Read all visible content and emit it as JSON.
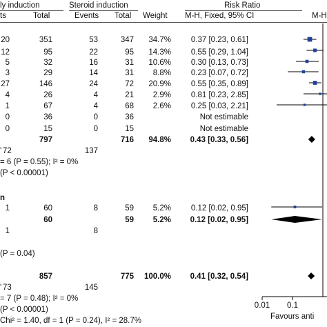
{
  "header": {
    "group1": "ly induction",
    "group2": "Steroid induction",
    "effect": "Risk Ratio",
    "col_events1": "ts",
    "col_total1": "Total",
    "col_events2": "Events",
    "col_total2": "Total",
    "col_weight": "Weight",
    "col_method": "M-H, Fixed, 95% CI",
    "col_method_right": "M-H"
  },
  "rows": [
    {
      "e1": "20",
      "t1": "351",
      "e2": "53",
      "t2": "347",
      "w": "34.7%",
      "ci": "0.37 [0.23, 0.61]"
    },
    {
      "e1": "12",
      "t1": "95",
      "e2": "22",
      "t2": "95",
      "w": "14.3%",
      "ci": "0.55 [0.29, 1.04]"
    },
    {
      "e1": "5",
      "t1": "32",
      "e2": "16",
      "t2": "31",
      "w": "10.6%",
      "ci": "0.30 [0.13, 0.73]"
    },
    {
      "e1": "3",
      "t1": "29",
      "e2": "14",
      "t2": "31",
      "w": "8.8%",
      "ci": "0.23 [0.07, 0.72]"
    },
    {
      "e1": "27",
      "t1": "146",
      "e2": "24",
      "t2": "72",
      "w": "20.9%",
      "ci": "0.55 [0.35, 0.89]"
    },
    {
      "e1": "4",
      "t1": "26",
      "e2": "4",
      "t2": "21",
      "w": "2.9%",
      "ci": "0.81 [0.23, 2.85]"
    },
    {
      "e1": "1",
      "t1": "67",
      "e2": "4",
      "t2": "68",
      "w": "2.6%",
      "ci": "0.25 [0.03, 2.21]"
    },
    {
      "e1": "0",
      "t1": "36",
      "e2": "0",
      "t2": "36",
      "w": "",
      "ci": "Not estimable"
    },
    {
      "e1": "0",
      "t1": "15",
      "e2": "0",
      "t2": "15",
      "w": "",
      "ci": "Not estimable"
    }
  ],
  "subtotal1": {
    "t1": "797",
    "t2": "716",
    "w": "94.8%",
    "ci": "0.43 [0.33, 0.56]"
  },
  "events1": {
    "e1": "72",
    "e2": "137",
    "prefix": "'"
  },
  "het1": "= 6 (P = 0.55); I² = 0%",
  "overall1": "(P < 0.00001)",
  "subgroup2_label": "n",
  "rows2": [
    {
      "e1": "1",
      "t1": "60",
      "e2": "8",
      "t2": "59",
      "w": "5.2%",
      "ci": "0.12 [0.02, 0.95]"
    }
  ],
  "subtotal2": {
    "t1": "60",
    "t2": "59",
    "w": "5.2%",
    "ci": "0.12 [0.02, 0.95]"
  },
  "events2": {
    "e1": "1",
    "e2": "8"
  },
  "overall2": "(P = 0.04)",
  "total": {
    "t1": "857",
    "t2": "775",
    "w": "100.0%",
    "ci": "0.41 [0.32, 0.54]"
  },
  "events_total": {
    "e1": "73",
    "e2": "145",
    "prefix": "'"
  },
  "het_total": "= 7 (P = 0.48); I² = 0%",
  "overall_total": "(P < 0.00001)",
  "subgroup_diff": "Chi² = 1.40, df = 1 (P = 0.24), I² = 28.7%",
  "axis_ticks": [
    "0.01",
    "0.1"
  ],
  "favours_label": "Favours anti",
  "colors": {
    "marker": "#1f3f99",
    "diamond": "#000000",
    "line": "#000000"
  },
  "chart_data": {
    "type": "forest",
    "scale": "log",
    "xlim": [
      0.01,
      1
    ],
    "tick_values": [
      0.01,
      0.1
    ],
    "tick_labels": [
      "0.01",
      "0.1"
    ],
    "studies": [
      {
        "rr": 0.37,
        "lo": 0.23,
        "hi": 0.61,
        "weight": 34.7
      },
      {
        "rr": 0.55,
        "lo": 0.29,
        "hi": 1.04,
        "weight": 14.3
      },
      {
        "rr": 0.3,
        "lo": 0.13,
        "hi": 0.73,
        "weight": 10.6
      },
      {
        "rr": 0.23,
        "lo": 0.07,
        "hi": 0.72,
        "weight": 8.8
      },
      {
        "rr": 0.55,
        "lo": 0.35,
        "hi": 0.89,
        "weight": 20.9
      },
      {
        "rr": 0.81,
        "lo": 0.23,
        "hi": 2.85,
        "weight": 2.9
      },
      {
        "rr": 0.25,
        "lo": 0.03,
        "hi": 2.21,
        "weight": 2.6
      },
      {
        "rr": 0.12,
        "lo": 0.02,
        "hi": 0.95,
        "weight": 5.2
      }
    ],
    "diamonds": [
      {
        "rr": 0.43,
        "lo": 0.33,
        "hi": 0.56
      },
      {
        "rr": 0.12,
        "lo": 0.02,
        "hi": 0.95
      },
      {
        "rr": 0.41,
        "lo": 0.32,
        "hi": 0.54
      }
    ]
  }
}
